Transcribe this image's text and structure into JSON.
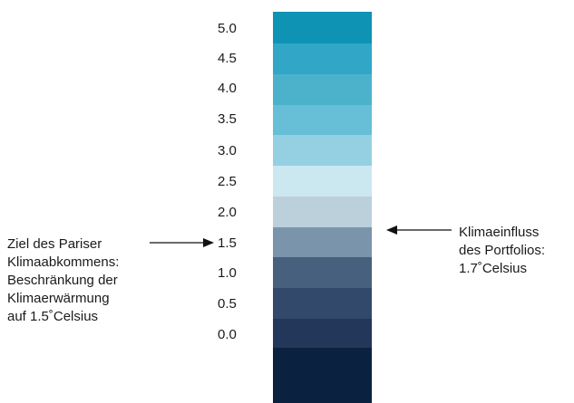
{
  "scale": {
    "labels": [
      "5.0",
      "4.5",
      "4.0",
      "3.5",
      "3.0",
      "2.5",
      "2.0",
      "1.5",
      "1.0",
      "0.5",
      "0.0"
    ]
  },
  "bands": [
    {
      "color": "#0e93b5"
    },
    {
      "color": "#31a6c7"
    },
    {
      "color": "#4cb2cc"
    },
    {
      "color": "#66bfd6"
    },
    {
      "color": "#95d0e2"
    },
    {
      "color": "#cbe8f1"
    },
    {
      "color": "#bcd0db"
    },
    {
      "color": "#7a94ab"
    },
    {
      "color": "#47607d"
    },
    {
      "color": "#33496b"
    },
    {
      "color": "#23375a"
    },
    {
      "color": "#0a2240"
    }
  ],
  "annotations": {
    "left": {
      "lines": [
        "Ziel des Pariser",
        "Klimaabkommens:",
        "Beschränkung der",
        "Klimaerwärmung",
        "auf 1.5˚Celsius"
      ]
    },
    "right": {
      "lines": [
        "Klimaeinfluss",
        "des Portfolios:",
        "1.7˚Celsius"
      ]
    }
  }
}
